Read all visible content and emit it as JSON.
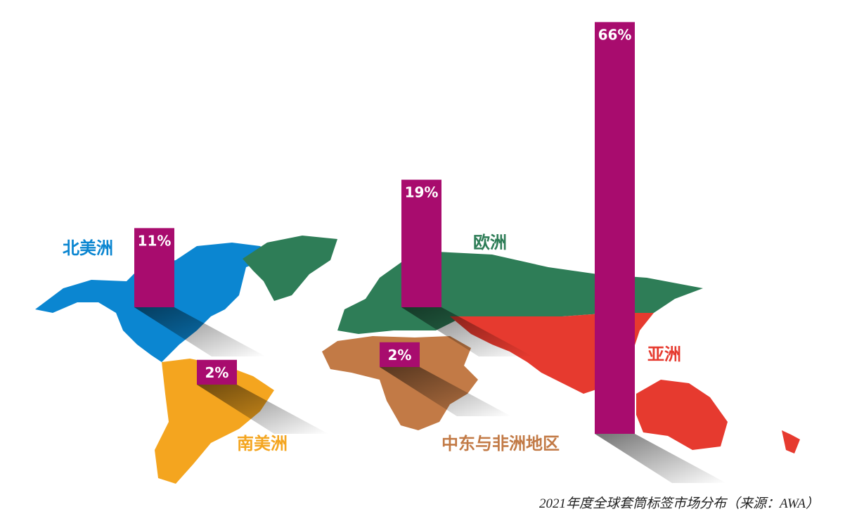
{
  "chart_data": {
    "type": "bar",
    "categories": [
      "北美洲",
      "南美洲",
      "欧洲",
      "中东与非洲地区",
      "亚洲"
    ],
    "values": [
      11,
      2,
      19,
      2,
      66
    ],
    "value_labels": [
      "11%",
      "2%",
      "19%",
      "2%",
      "66%"
    ],
    "color": "#a80c6e",
    "colors": [
      "#0b86d1",
      "#f4a51f",
      "#2e7d57",
      "#c27a46",
      "#e63a2f"
    ],
    "caption": "2021年度全球套筒标签市场分布（来源：AWA）"
  }
}
